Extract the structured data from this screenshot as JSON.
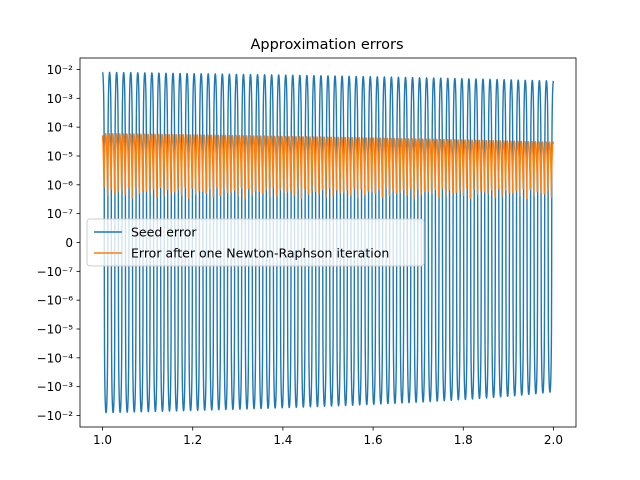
{
  "chart_data": {
    "type": "line",
    "title": "Approximation errors",
    "xlabel": "",
    "ylabel": "",
    "xlim": [
      0.95,
      2.05
    ],
    "yscale": "symlog",
    "linthresh": 1e-07,
    "ylim": [
      -0.025,
      0.025
    ],
    "grid": false,
    "legend_position": "center-left",
    "x_ticks": [
      1.0,
      1.2,
      1.4,
      1.6,
      1.8,
      2.0
    ],
    "x_tick_labels": [
      "1.0",
      "1.2",
      "1.4",
      "1.6",
      "1.8",
      "2.0"
    ],
    "y_ticks": [
      0.01,
      0.001,
      0.0001,
      1e-05,
      1e-06,
      1e-07,
      0,
      -1e-07,
      -1e-06,
      -1e-05,
      -0.0001,
      -0.001,
      -0.01
    ],
    "y_tick_labels": [
      "10⁻²",
      "10⁻³",
      "10⁻⁴",
      "10⁻⁵",
      "10⁻⁶",
      "10⁻⁷",
      "0",
      "−10⁻⁷",
      "−10⁻⁶",
      "−10⁻⁵",
      "−10⁻⁴",
      "−10⁻³",
      "−10⁻²"
    ],
    "series": [
      {
        "name": "Seed error",
        "color": "#1f77b4",
        "description_values": {
          "x_range": [
            1.0,
            2.0
          ],
          "oscillations": 64,
          "peak_positive_start": 0.008,
          "peak_positive_end": 0.004,
          "peak_negative_start": -0.008,
          "peak_negative_end": -0.0015
        }
      },
      {
        "name": "Error after one Newton-Raphson iteration",
        "color": "#ff7f0e",
        "description_values": {
          "x_range": [
            1.0,
            2.0
          ],
          "oscillations": 64,
          "peak_positive_start": 6e-05,
          "peak_positive_end": 3e-05,
          "trough_positive_min": 3e-07
        }
      }
    ]
  }
}
